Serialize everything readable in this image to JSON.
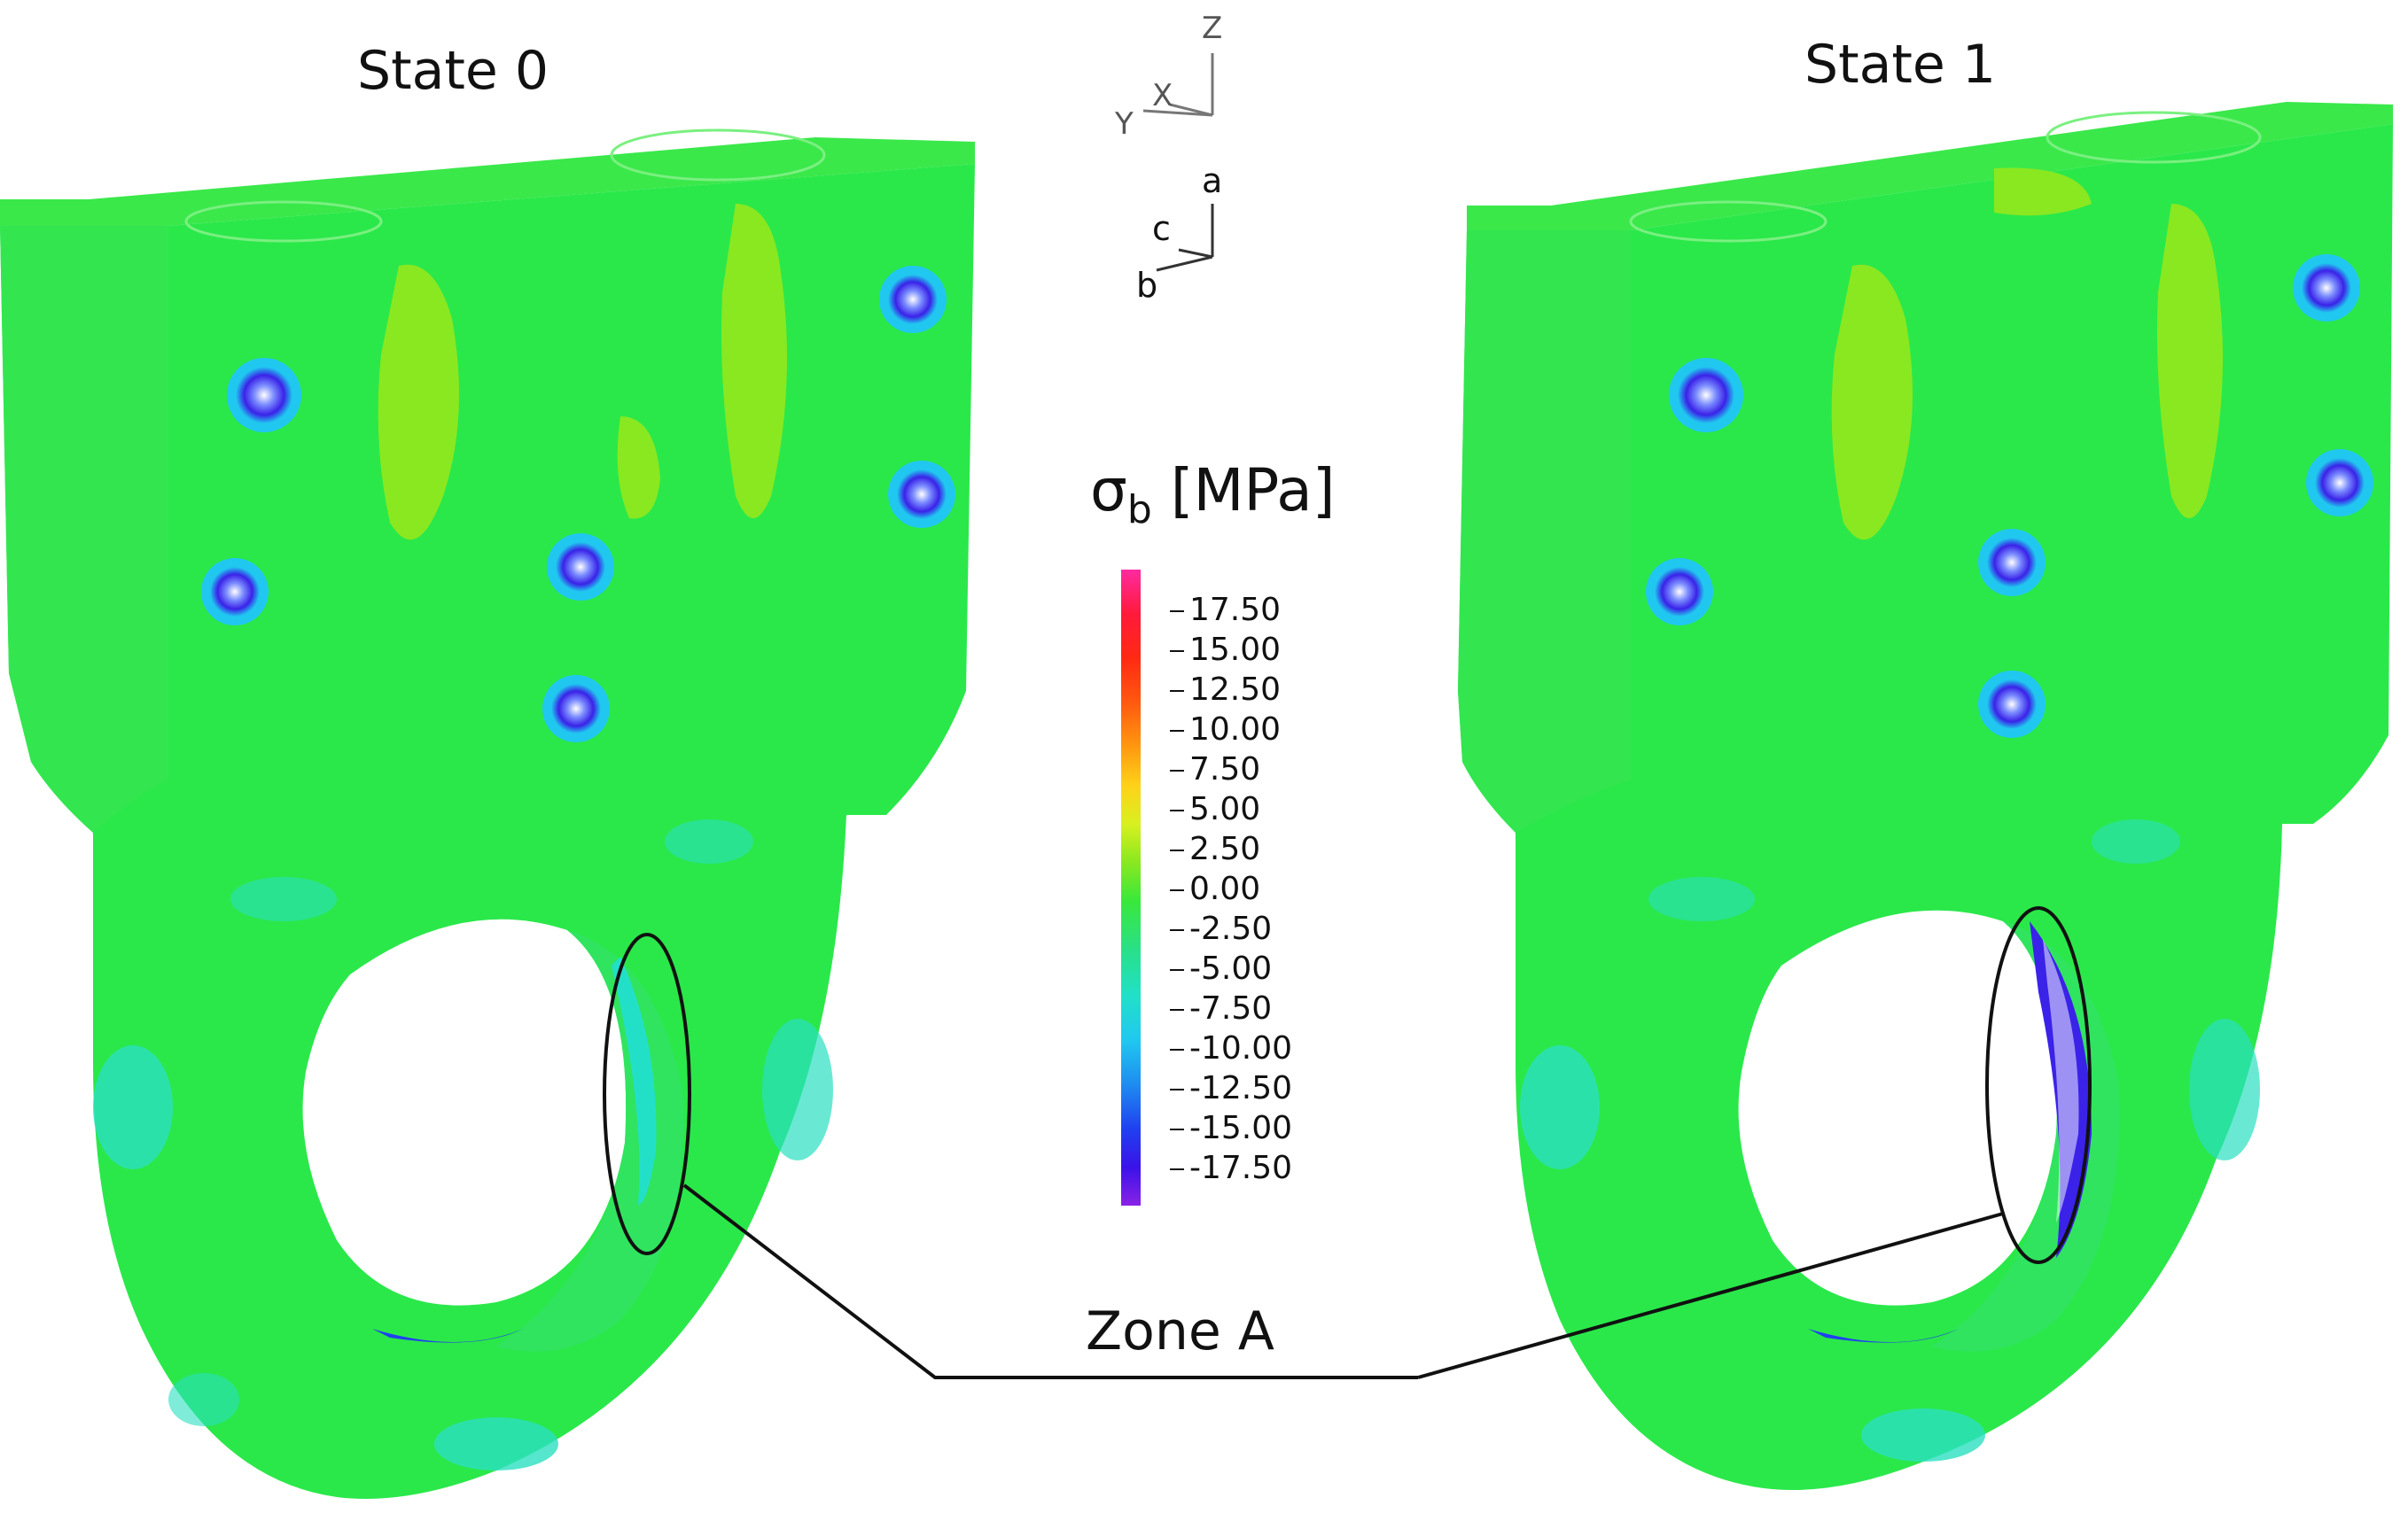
{
  "figure": {
    "panels": [
      {
        "title": "State 0"
      },
      {
        "title": "State 1"
      }
    ],
    "annotation_label": "Zone A",
    "legend": {
      "symbol": "σ",
      "subscript": "b",
      "unit": " [MPa]",
      "ticks": [
        "17.50",
        "15.00",
        "12.50",
        "10.00",
        "7.50",
        "5.00",
        "2.50",
        "0.00",
        "-2.50",
        "-5.00",
        "-7.50",
        "-10.00",
        "-12.50",
        "-15.00",
        "-17.50"
      ],
      "color_stops": [
        "#ff2aa0",
        "#ff1a3a",
        "#ff2a12",
        "#ff5a10",
        "#ff9a10",
        "#ffd21a",
        "#d8f020",
        "#8ae820",
        "#3ae83a",
        "#28e08a",
        "#22e0c8",
        "#20c8f0",
        "#1e8cf0",
        "#2040f0",
        "#3a12e8",
        "#8a22e6"
      ]
    },
    "global_axes": {
      "z": "Z",
      "y": "Y",
      "x": "X"
    },
    "local_axes": {
      "a": "a",
      "b": "b",
      "c": "c"
    },
    "colors": {
      "part_base": "#22e84a",
      "high_patch": "#8ae820",
      "low_patch": "#2ae0c0",
      "hole_ring": "#3a22e8"
    }
  }
}
